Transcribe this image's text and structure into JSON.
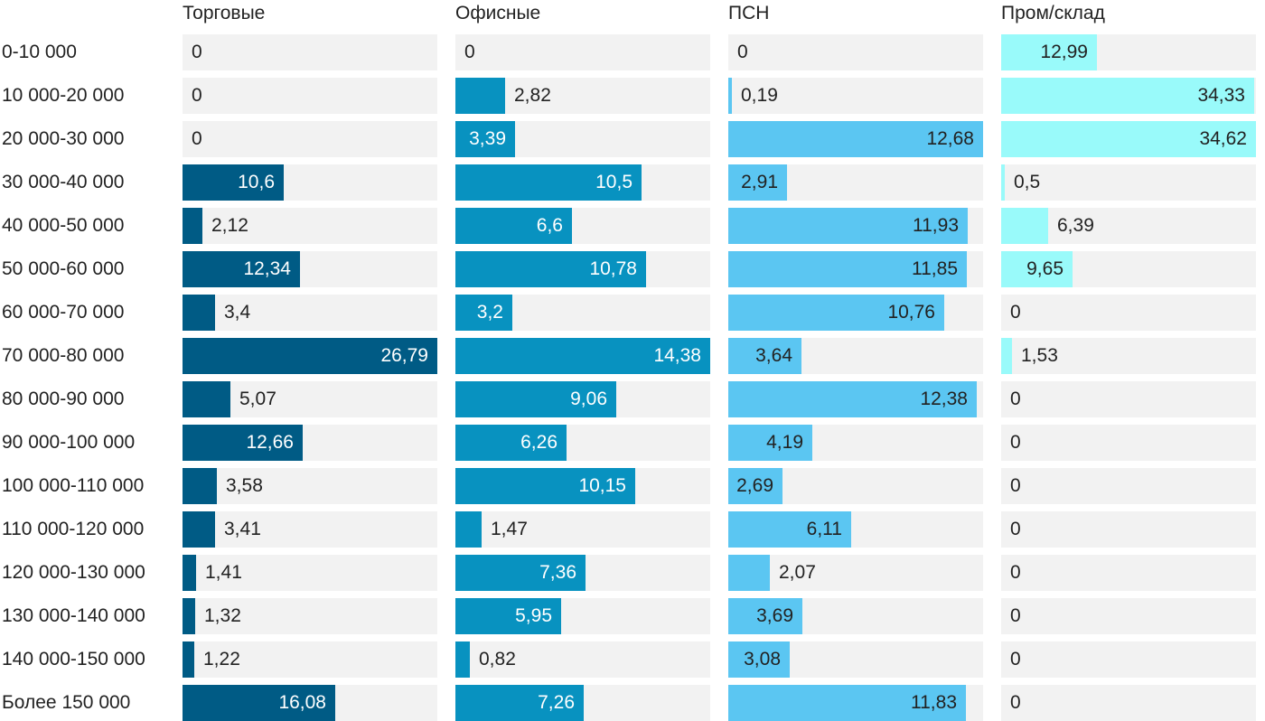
{
  "chart_data": {
    "type": "bar",
    "orientation": "horizontal",
    "layout": "small-multiples",
    "categories": [
      "0-10 000",
      "10 000-20 000",
      "20 000-30 000",
      "30 000-40 000",
      "40 000-50 000",
      "50 000-60 000",
      "60 000-70 000",
      "70 000-80 000",
      "80 000-90 000",
      "90 000-100 000",
      "100 000-110 000",
      "110 000-120 000",
      "120 000-130 000",
      "130 000-140 000",
      "140 000-150 000",
      "Более 150 000"
    ],
    "series": [
      {
        "name": "Торговые",
        "color": "#005b85",
        "values": [
          0,
          0,
          0,
          10.6,
          2.12,
          12.34,
          3.4,
          26.79,
          5.07,
          12.66,
          3.58,
          3.41,
          1.41,
          1.32,
          1.22,
          16.08
        ],
        "labels": [
          "0",
          "0",
          "0",
          "10,6",
          "2,12",
          "12,34",
          "3,4",
          "26,79",
          "5,07",
          "12,66",
          "3,58",
          "3,41",
          "1,41",
          "1,32",
          "1,22",
          "16,08"
        ]
      },
      {
        "name": "Офисные",
        "color": "#0892c0",
        "values": [
          0,
          2.82,
          3.39,
          10.5,
          6.6,
          10.78,
          3.2,
          14.38,
          9.06,
          6.26,
          10.15,
          1.47,
          7.36,
          5.95,
          0.82,
          7.26
        ],
        "labels": [
          "0",
          "2,82",
          "3,39",
          "10,5",
          "6,6",
          "10,78",
          "3,2",
          "14,38",
          "9,06",
          "6,26",
          "10,15",
          "1,47",
          "7,36",
          "5,95",
          "0,82",
          "7,26"
        ]
      },
      {
        "name": "ПСН",
        "color": "#5bc6f2",
        "values": [
          0,
          0.19,
          12.68,
          2.91,
          11.93,
          11.85,
          10.76,
          3.64,
          12.38,
          4.19,
          2.69,
          6.11,
          2.07,
          3.69,
          3.08,
          11.83
        ],
        "labels": [
          "0",
          "0,19",
          "12,68",
          "2,91",
          "11,93",
          "11,85",
          "10,76",
          "3,64",
          "12,38",
          "4,19",
          "2,69",
          "6,11",
          "2,07",
          "3,69",
          "3,08",
          "11,83"
        ]
      },
      {
        "name": "Пром/склад",
        "color": "#99fafa",
        "values": [
          12.99,
          34.33,
          34.62,
          0.5,
          6.39,
          9.65,
          0,
          1.53,
          0,
          0,
          0,
          0,
          0,
          0,
          0,
          0
        ],
        "labels": [
          "12,99",
          "34,33",
          "34,62",
          "0,5",
          "6,39",
          "9,65",
          "0",
          "1,53",
          "0",
          "0",
          "0",
          "0",
          "0",
          "0",
          "0",
          "0"
        ]
      }
    ],
    "title": "",
    "xlabel": "",
    "ylabel": ""
  }
}
